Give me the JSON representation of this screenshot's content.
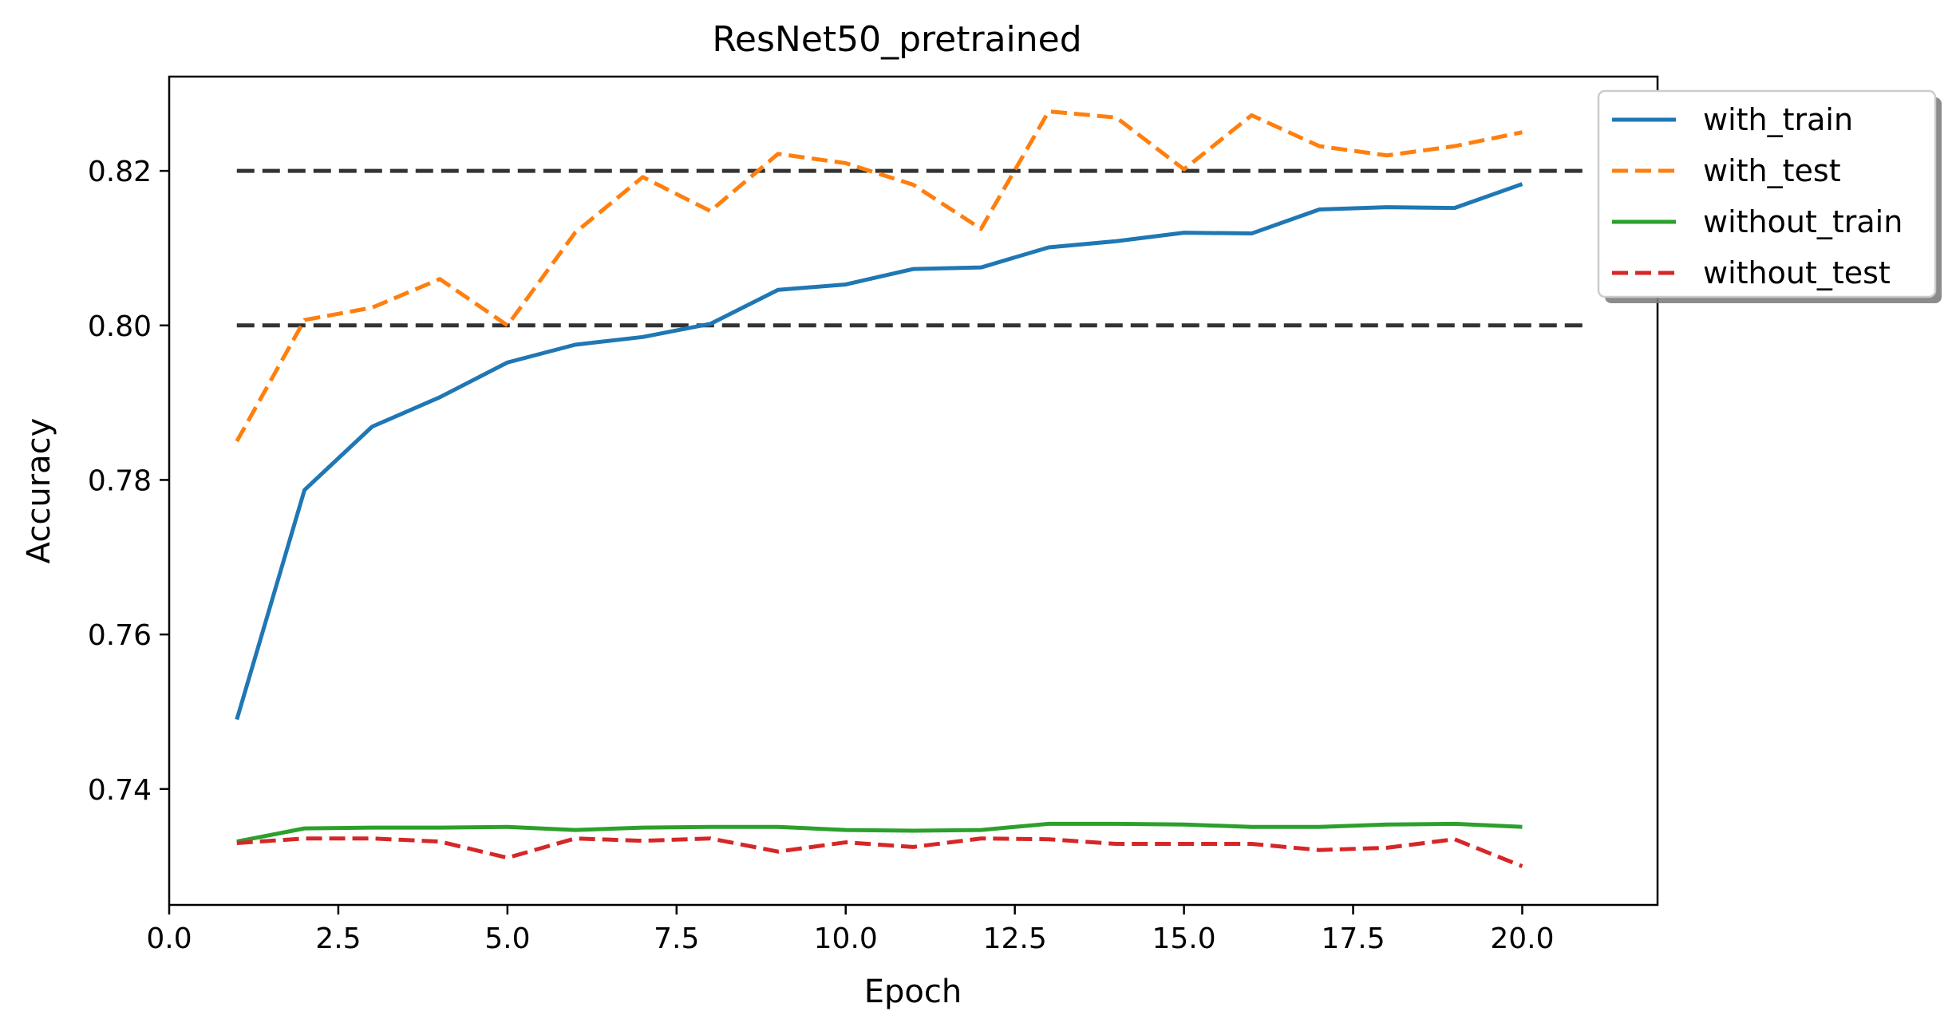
{
  "chart_data": {
    "type": "line",
    "title": "ResNet50_pretrained",
    "xlabel": "Epoch",
    "ylabel": "Accuracy",
    "xlim": [
      0,
      22
    ],
    "ylim": [
      0.725,
      0.8322
    ],
    "xticks": [
      0,
      2.5,
      5,
      7.5,
      10,
      12.5,
      15,
      17.5,
      20
    ],
    "xtick_labels": [
      "0.0",
      "2.5",
      "5.0",
      "7.5",
      "10.0",
      "12.5",
      "15.0",
      "17.5",
      "20.0"
    ],
    "yticks": [
      0.74,
      0.76,
      0.78,
      0.8,
      0.82
    ],
    "ytick_labels": [
      "0.74",
      "0.76",
      "0.78",
      "0.80",
      "0.82"
    ],
    "grid": false,
    "legend_position": "upper-right (outside)",
    "x": [
      1,
      2,
      3,
      4,
      5,
      6,
      7,
      8,
      9,
      10,
      11,
      12,
      13,
      14,
      15,
      16,
      17,
      18,
      19,
      20
    ],
    "series": [
      {
        "name": "with_train",
        "color": "#1f77b4",
        "dash": "solid",
        "values": [
          0.749,
          0.7787,
          0.7869,
          0.7907,
          0.7952,
          0.7975,
          0.7985,
          0.8002,
          0.8046,
          0.8053,
          0.8073,
          0.8075,
          0.8101,
          0.8109,
          0.812,
          0.8119,
          0.815,
          0.8153,
          0.8152,
          0.8183
        ]
      },
      {
        "name": "with_test",
        "color": "#ff7f0e",
        "dash": "dashed",
        "values": [
          0.785,
          0.8007,
          0.8023,
          0.806,
          0.8,
          0.812,
          0.8192,
          0.8148,
          0.8222,
          0.821,
          0.8182,
          0.8125,
          0.8277,
          0.8269,
          0.8202,
          0.8272,
          0.8232,
          0.822,
          0.8232,
          0.825
        ]
      },
      {
        "name": "without_train",
        "color": "#2ca02c",
        "dash": "solid",
        "values": [
          0.7332,
          0.7349,
          0.735,
          0.735,
          0.7351,
          0.7347,
          0.735,
          0.7351,
          0.7351,
          0.7347,
          0.7346,
          0.7347,
          0.7355,
          0.7355,
          0.7354,
          0.7351,
          0.7351,
          0.7354,
          0.7355,
          0.7351
        ]
      },
      {
        "name": "without_test",
        "color": "#d62728",
        "dash": "dashed",
        "values": [
          0.733,
          0.7336,
          0.7336,
          0.7332,
          0.7311,
          0.7336,
          0.7333,
          0.7336,
          0.7319,
          0.7331,
          0.7325,
          0.7336,
          0.7335,
          0.7329,
          0.7329,
          0.7329,
          0.7321,
          0.7324,
          0.7335,
          0.73
        ]
      }
    ],
    "reference_lines": [
      {
        "y": 0.8,
        "x_range": [
          1,
          21
        ],
        "color": "#333333",
        "dash": "dashed"
      },
      {
        "y": 0.82,
        "x_range": [
          1,
          21
        ],
        "color": "#333333",
        "dash": "dashed"
      }
    ]
  }
}
